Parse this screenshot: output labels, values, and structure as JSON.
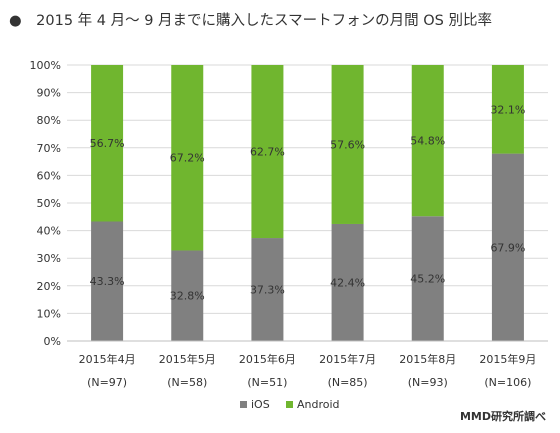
{
  "title": "●　2015 年 4 月～ 9 月までに購入したスマートフォンの月間 OS 別比率",
  "credit": "MMD研究所調べ",
  "chart_data": {
    "type": "bar",
    "stacked": true,
    "percent": true,
    "categories": [
      "2015年4月",
      "2015年5月",
      "2015年6月",
      "2015年7月",
      "2015年8月",
      "2015年9月"
    ],
    "sample_sizes": [
      "(N=97)",
      "(N=58)",
      "(N=51)",
      "(N=85)",
      "(N=93)",
      "(N=106)"
    ],
    "series": [
      {
        "name": "iOS",
        "color": "#808080",
        "values": [
          43.3,
          32.8,
          37.3,
          42.4,
          45.2,
          67.9
        ],
        "labels": [
          "43.3%",
          "32.8%",
          "37.3%",
          "42.4%",
          "45.2%",
          "67.9%"
        ]
      },
      {
        "name": "Android",
        "color": "#70b62f",
        "values": [
          56.7,
          67.2,
          62.7,
          57.6,
          54.8,
          32.1
        ],
        "labels": [
          "56.7%",
          "67.2%",
          "62.7%",
          "57.6%",
          "54.8%",
          "32.1%"
        ]
      }
    ],
    "ylim": [
      0,
      100
    ],
    "yticks": [
      "0%",
      "10%",
      "20%",
      "30%",
      "40%",
      "50%",
      "60%",
      "70%",
      "80%",
      "90%",
      "100%"
    ],
    "grid": true,
    "legend": "bottom"
  }
}
